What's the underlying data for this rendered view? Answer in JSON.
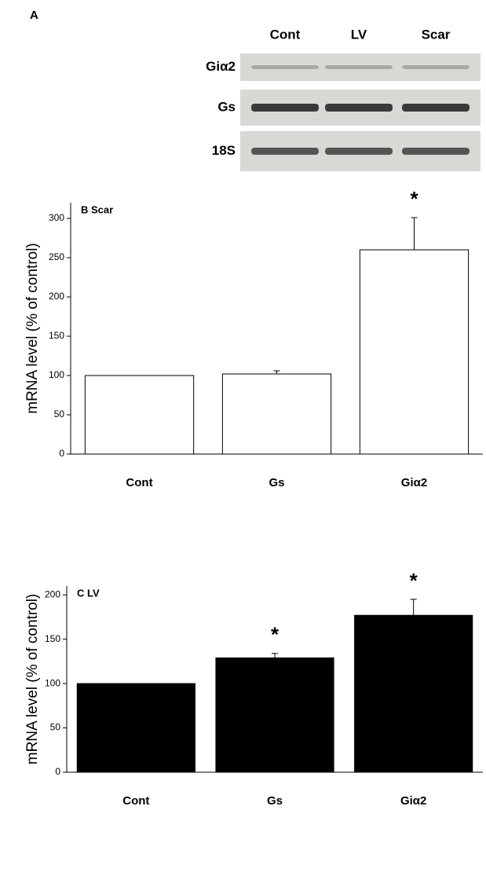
{
  "panel_a": {
    "label": "A",
    "columns": [
      "Cont",
      "LV",
      "Scar"
    ],
    "rows": [
      "Giα2",
      "Gs",
      "18S"
    ]
  },
  "chart_data": [
    {
      "type": "bar",
      "title": "B Scar",
      "y_label": "mRNA level (% of control)",
      "categories": [
        "Cont",
        "Gs",
        "Giα2"
      ],
      "values": [
        100,
        102,
        260
      ],
      "errors": [
        null,
        4,
        41
      ],
      "significance": [
        null,
        null,
        "*"
      ],
      "color": "#ffffff",
      "ylim": [
        0,
        320
      ],
      "yticks": [
        0,
        50,
        100,
        150,
        200,
        250,
        300
      ]
    },
    {
      "type": "bar",
      "title": "C LV",
      "y_label": "mRNA level (% of control)",
      "categories": [
        "Cont",
        "Gs",
        "Giα2"
      ],
      "values": [
        100,
        129,
        177
      ],
      "errors": [
        null,
        5,
        18
      ],
      "significance": [
        null,
        "*",
        "*"
      ],
      "color": "#000000",
      "ylim": [
        0,
        210
      ],
      "yticks": [
        0,
        50,
        100,
        150,
        200
      ]
    }
  ]
}
